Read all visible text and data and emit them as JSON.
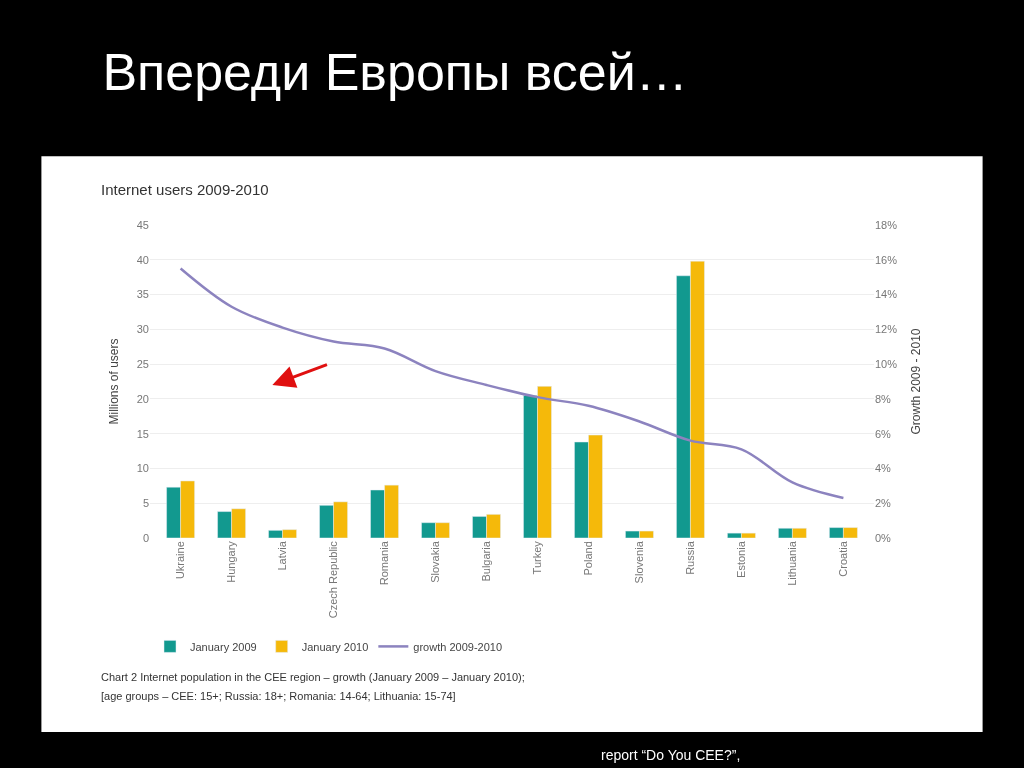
{
  "chart_data": {
    "type": "bar",
    "title": "Впереди Европы всей…",
    "subtitle": "Internet users 2009-2010",
    "ylabel": "Millions of users",
    "y2label": "Growth 2009 - 2010",
    "categories": [
      "Ukraine",
      "Hungary",
      "Latvia",
      "Czech Republic",
      "Romania",
      "Slovakia",
      "Bulgaria",
      "Turkey",
      "Poland",
      "Slovenia",
      "Russia",
      "Estonia",
      "Lithuania",
      "Croatia"
    ],
    "series": [
      {
        "name": "January 2009",
        "color": "#12998f",
        "values": [
          7.3,
          3.8,
          1.1,
          4.7,
          6.9,
          2.2,
          3.1,
          20.5,
          13.8,
          1.0,
          37.7,
          0.7,
          1.4,
          1.5
        ]
      },
      {
        "name": "January 2010",
        "color": "#f5b90a",
        "values": [
          8.2,
          4.2,
          1.2,
          5.2,
          7.6,
          2.2,
          3.4,
          21.8,
          14.8,
          1.0,
          39.8,
          0.7,
          1.4,
          1.5
        ]
      },
      {
        "name": "growth 2009-2010",
        "type": "line",
        "axis": "y2",
        "color": "#8c83bf",
        "values": [
          15.5,
          13.3,
          12.1,
          11.3,
          10.9,
          9.6,
          8.8,
          8.1,
          7.6,
          6.7,
          5.6,
          5.1,
          3.2,
          2.3
        ]
      }
    ],
    "ylim": [
      0,
      45
    ],
    "yticks": [
      0,
      5,
      10,
      15,
      20,
      25,
      30,
      35,
      40,
      45
    ],
    "y2lim": [
      0,
      18
    ],
    "y2ticks": [
      {
        "value": 0,
        "label": "0%"
      },
      {
        "value": 2,
        "label": "2%"
      },
      {
        "value": 4,
        "label": "4%"
      },
      {
        "value": 6,
        "label": "6%"
      },
      {
        "value": 8,
        "label": "8%"
      },
      {
        "value": 10,
        "label": "10%"
      },
      {
        "value": 12,
        "label": "12%"
      },
      {
        "value": 14,
        "label": "14%"
      },
      {
        "value": 16,
        "label": "16%"
      },
      {
        "value": 18,
        "label": "18%"
      }
    ],
    "grid": "y",
    "legend": "bottom",
    "annotations": [
      "Chart 2 Internet population in the CEE region – growth (January 2009 – January 2010);",
      "[age groups – CEE: 15+; Russia: 18+; Romania: 14-64; Lithuania: 15-74]",
      "report “Do You CEE?”,"
    ]
  }
}
